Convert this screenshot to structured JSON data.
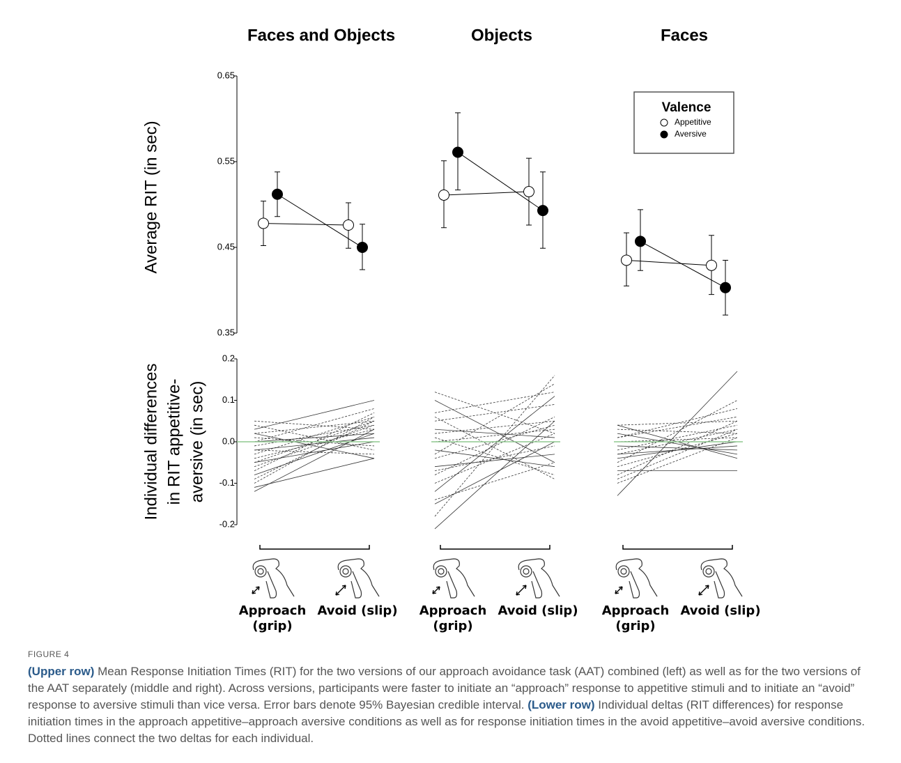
{
  "figure": {
    "label": "FIGURE 4",
    "caption": [
      "(Upper row)",
      " Mean Response Initiation Times (RIT) for the two versions of our approach avoidance task (AAT) combined (left) as well as for the two versions of the AAT separately (middle and right). Across versions, participants were faster to initiate an “approach” response to appetitive stimuli and to initiate an “avoid” response to aversive stimuli than vice versa. Error bars denote 95% Bayesian credible interval. ",
      "(Lower row)",
      " Individual deltas (RIT differences) for response initiation times in the approach appetitive–approach aversive conditions as well as for response initiation times in the avoid appetitive–avoid aversive conditions. Dotted lines connect the two deltas for each individual."
    ]
  },
  "chart_data": [
    {
      "type": "dot-line",
      "title": "Faces and Objects",
      "ylabel": "Average RIT (in sec)",
      "ylim": [
        0.35,
        0.65
      ],
      "yticks": [
        0.65,
        0.55,
        0.45,
        0.35
      ],
      "series": [
        {
          "color": "#ffffff",
          "values": [
            0.478,
            0.476
          ],
          "lower": [
            0.452,
            0.449
          ],
          "upper": [
            0.504,
            0.502
          ]
        },
        {
          "color": "#000000",
          "values": [
            0.512,
            0.45
          ],
          "lower": [
            0.486,
            0.424
          ],
          "upper": [
            0.538,
            0.477
          ]
        }
      ]
    },
    {
      "type": "dot-line",
      "title": "Objects",
      "ylim": [
        0.35,
        0.65
      ],
      "series": [
        {
          "color": "#ffffff",
          "values": [
            0.511,
            0.515
          ],
          "lower": [
            0.473,
            0.476
          ],
          "upper": [
            0.551,
            0.554
          ]
        },
        {
          "color": "#000000",
          "values": [
            0.561,
            0.493
          ],
          "lower": [
            0.517,
            0.449
          ],
          "upper": [
            0.607,
            0.538
          ]
        }
      ]
    },
    {
      "type": "dot-line",
      "title": "Faces",
      "ylim": [
        0.35,
        0.65
      ],
      "legend": "upper right",
      "legend_title": "Valence",
      "series": [
        {
          "name": "Appetitive",
          "color": "#ffffff",
          "values": [
            0.435,
            0.429
          ],
          "lower": [
            0.405,
            0.395
          ],
          "upper": [
            0.467,
            0.464
          ]
        },
        {
          "name": "Aversive",
          "color": "#000000",
          "values": [
            0.457,
            0.403
          ],
          "lower": [
            0.423,
            0.371
          ],
          "upper": [
            0.494,
            0.435
          ]
        }
      ]
    },
    {
      "type": "slope",
      "ylabel": [
        "Individual differences",
        "in RIT appetitive-",
        "aversive (in sec)"
      ],
      "ylim": [
        -0.2,
        0.2
      ],
      "yticks": [
        0.2,
        0.1,
        {
          "value": 0,
          "label": "0.0"
        },
        -0.1,
        -0.2
      ],
      "hline": {
        "value": 0,
        "color": "#8fc88f"
      },
      "categories": [
        "Approach (grip)",
        "Avoid (slip)"
      ],
      "individuals": [
        [
          -0.12,
          0.03
        ],
        [
          -0.1,
          0.06
        ],
        [
          -0.09,
          0.05
        ],
        [
          -0.08,
          0.02
        ],
        [
          -0.07,
          0.07
        ],
        [
          -0.06,
          0.04
        ],
        [
          -0.05,
          0.0
        ],
        [
          -0.04,
          0.03
        ],
        [
          -0.03,
          0.06
        ],
        [
          -0.02,
          0.01
        ],
        [
          -0.02,
          -0.03
        ],
        [
          -0.01,
          0.04
        ],
        [
          0.0,
          0.02
        ],
        [
          0.01,
          -0.01
        ],
        [
          0.02,
          0.05
        ],
        [
          0.03,
          0.1
        ],
        [
          0.04,
          -0.02
        ],
        [
          0.05,
          0.03
        ],
        [
          -0.11,
          -0.04
        ],
        [
          0.0,
          0.08
        ],
        [
          -0.05,
          0.05
        ],
        [
          0.02,
          -0.04
        ]
      ]
    },
    {
      "type": "slope",
      "ylim": [
        -0.2,
        0.2
      ],
      "hline": {
        "value": 0,
        "color": "#8fc88f"
      },
      "categories": [
        "Approach (grip)",
        "Avoid (slip)"
      ],
      "individuals": [
        [
          -0.21,
          0.05
        ],
        [
          -0.18,
          0.16
        ],
        [
          -0.14,
          -0.05
        ],
        [
          -0.12,
          0.11
        ],
        [
          -0.1,
          0.02
        ],
        [
          -0.08,
          0.06
        ],
        [
          -0.06,
          -0.03
        ],
        [
          -0.04,
          0.04
        ],
        [
          -0.03,
          0.14
        ],
        [
          -0.02,
          -0.06
        ],
        [
          0.0,
          0.03
        ],
        [
          0.01,
          -0.08
        ],
        [
          0.03,
          0.01
        ],
        [
          0.05,
          0.09
        ],
        [
          0.07,
          0.12
        ],
        [
          0.1,
          -0.05
        ],
        [
          0.12,
          0.02
        ],
        [
          0.06,
          -0.09
        ],
        [
          -0.15,
          0.0
        ],
        [
          0.02,
          0.05
        ],
        [
          -0.07,
          -0.01
        ]
      ]
    },
    {
      "type": "slope",
      "ylim": [
        -0.2,
        0.2
      ],
      "hline": {
        "value": 0,
        "color": "#8fc88f"
      },
      "categories": [
        "Approach (grip)",
        "Avoid (slip)"
      ],
      "individuals": [
        [
          -0.13,
          0.17
        ],
        [
          -0.1,
          0.01
        ],
        [
          -0.08,
          0.05
        ],
        [
          -0.07,
          -0.07
        ],
        [
          -0.06,
          0.02
        ],
        [
          -0.05,
          0.1
        ],
        [
          -0.04,
          0.0
        ],
        [
          -0.03,
          0.03
        ],
        [
          -0.02,
          0.04
        ],
        [
          -0.01,
          -0.02
        ],
        [
          0.0,
          0.01
        ],
        [
          0.01,
          0.06
        ],
        [
          0.02,
          -0.03
        ],
        [
          0.03,
          0.02
        ],
        [
          0.04,
          0.05
        ],
        [
          0.04,
          -0.04
        ],
        [
          -0.09,
          0.03
        ],
        [
          0.01,
          0.08
        ],
        [
          -0.03,
          -0.01
        ]
      ]
    }
  ]
}
